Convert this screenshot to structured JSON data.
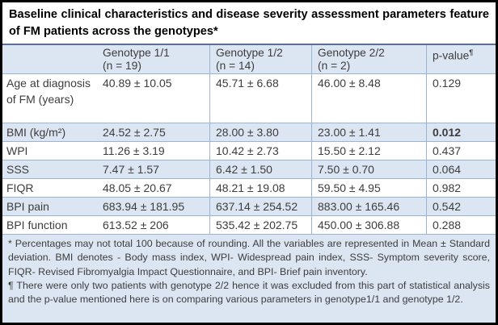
{
  "title": "Baseline clinical characteristics and disease severity assessment parameters feature of FM patients across the genotypes*",
  "header": {
    "genotype_cols": [
      {
        "name": "Genotype 1/1",
        "n": "(n = 19)"
      },
      {
        "name": "Genotype 1/2",
        "n": "(n = 14)"
      },
      {
        "name": "Genotype 2/2",
        "n": "(n = 2)"
      }
    ],
    "p_col": {
      "name": "p-value",
      "mark": "¶"
    }
  },
  "rows": [
    {
      "label": "Age at diagnosis of FM (years)",
      "values": [
        "40.89 ± 10.05",
        "45.71 ± 6.68",
        "46.00 ± 8.48"
      ],
      "p": "0.129"
    },
    {
      "label": "BMI (kg/m²)",
      "values": [
        "24.52 ± 2.75",
        "28.00 ± 3.80",
        "23.00 ± 1.41"
      ],
      "p": "0.012"
    },
    {
      "label": "WPI",
      "values": [
        "11.26 ± 3.19",
        "10.42 ± 2.73",
        "15.50 ± 2.12"
      ],
      "p": "0.437"
    },
    {
      "label": "SSS",
      "values": [
        "7.47 ± 1.57",
        "6.42 ± 1.50",
        "7.50 ± 0.70"
      ],
      "p": "0.064"
    },
    {
      "label": "FIQR",
      "values": [
        "48.05 ± 20.67",
        "48.21 ± 19.08",
        "59.50 ± 4.95"
      ],
      "p": "0.982"
    },
    {
      "label": "BPI pain",
      "values": [
        "683.94 ± 181.95",
        "637.14 ± 254.52",
        "883.00 ± 165.46"
      ],
      "p": "0.542"
    },
    {
      "label": "BPI function",
      "values": [
        "613.52 ± 206",
        "535.42 ± 202.75",
        "450.00 ± 306.88"
      ],
      "p": "0.288"
    }
  ],
  "footnotes": [
    "* Percentages may not total 100 because of rounding. All the variables are represented in Mean ± Standard deviation. BMI denotes - Body mass index, WPI- Widespread pain index, SSS- Symptom severity score, FIQR- Revised Fibromyalgia Impact Questionnaire, and BPI- Brief pain inventory.",
    "¶ There were only two patients with genotype 2/2 hence it was excluded from this part of statistical analysis and the p-value mentioned here is on comparing various parameters in genotype1/1 and genotype 1/2."
  ],
  "colors": {
    "band": "#dce6f2",
    "grid": "#9db3d3",
    "title_rule": "#5a6f94",
    "text": "#3d3d3d",
    "outer_border": "#000000",
    "title_text": "#000000"
  }
}
